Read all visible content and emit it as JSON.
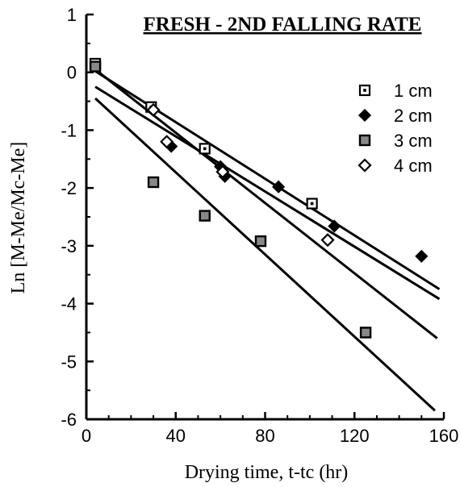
{
  "chart_data": {
    "type": "scatter",
    "title": "FRESH - 2ND FALLING RATE",
    "xlabel": "Drying time, t-tc (hr)",
    "ylabel": "Ln [M-Me/Mc-Me]",
    "xlim": [
      0,
      160
    ],
    "ylim": [
      -6,
      1
    ],
    "xticks": [
      0,
      40,
      80,
      120,
      160
    ],
    "yticks": [
      1,
      0,
      -1,
      -2,
      -3,
      -4,
      -5,
      -6
    ],
    "legend_position": "top-right",
    "series": [
      {
        "name": "1 cm",
        "marker": "dotted-square",
        "points": [
          [
            4,
            0.15
          ],
          [
            29,
            -0.6
          ],
          [
            53,
            -1.32
          ],
          [
            101,
            -2.27
          ]
        ],
        "fit": [
          [
            4,
            0.02
          ],
          [
            158,
            -3.75
          ]
        ]
      },
      {
        "name": "2 cm",
        "marker": "filled-diamond",
        "points": [
          [
            38,
            -1.28
          ],
          [
            60,
            -1.63
          ],
          [
            62,
            -1.8
          ],
          [
            86,
            -1.98
          ],
          [
            111,
            -2.66
          ],
          [
            150,
            -3.18
          ]
        ],
        "fit": [
          [
            4,
            -0.25
          ],
          [
            158,
            -3.92
          ]
        ]
      },
      {
        "name": "3 cm",
        "marker": "gray-square",
        "points": [
          [
            4,
            0.1
          ],
          [
            30,
            -1.9
          ],
          [
            53,
            -2.48
          ],
          [
            78,
            -2.92
          ],
          [
            125,
            -4.5
          ]
        ],
        "fit": [
          [
            4,
            -0.45
          ],
          [
            156,
            -5.85
          ]
        ]
      },
      {
        "name": "4 cm",
        "marker": "open-diamond",
        "points": [
          [
            30,
            -0.65
          ],
          [
            36,
            -1.2
          ],
          [
            61,
            -1.72
          ],
          [
            108,
            -2.9
          ]
        ],
        "fit": [
          [
            4,
            0.05
          ],
          [
            157,
            -4.6
          ]
        ]
      }
    ]
  }
}
